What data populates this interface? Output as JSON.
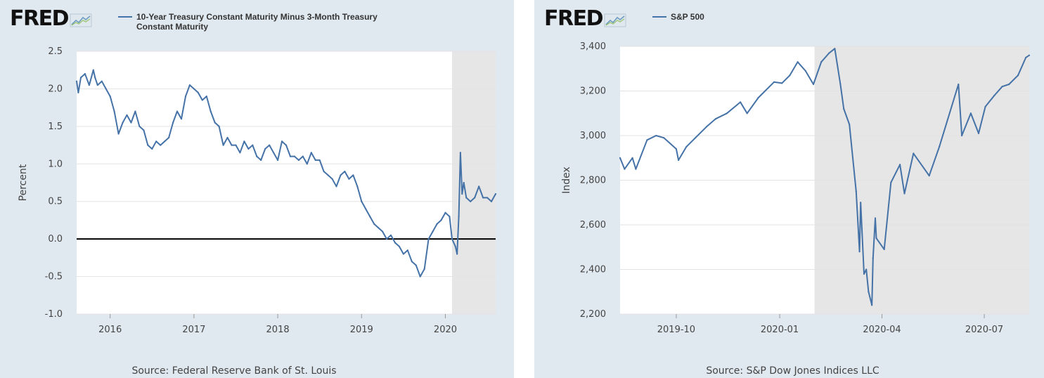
{
  "brand": "FRED",
  "colors": {
    "series": "#4572a7",
    "panel_bg": "#e1e9f0",
    "recession": "#e6e6e6",
    "zero_line": "#000000"
  },
  "chart_data": [
    {
      "type": "line",
      "legend": "10-Year Treasury Constant Maturity Minus 3-Month Treasury Constant Maturity",
      "legend_lines": [
        "10-Year Treasury Constant Maturity Minus 3-Month Treasury",
        "Constant Maturity"
      ],
      "ylabel": "Percent",
      "ylim": [
        -1.0,
        2.5
      ],
      "yticks": [
        "2.5",
        "2.0",
        "1.5",
        "1.0",
        "0.5",
        "0.0",
        "-0.5",
        "-1.0"
      ],
      "xlim": [
        2015.6,
        2020.6
      ],
      "xticks": [
        "2016",
        "2017",
        "2018",
        "2019",
        "2020"
      ],
      "recession": [
        2020.08,
        2020.6
      ],
      "reference_line": 0.0,
      "source": "Source: Federal Reserve Bank of St. Louis",
      "series": [
        {
          "name": "10-Year Treasury Constant Maturity Minus 3-Month Treasury Constant Maturity",
          "x": [
            2015.6,
            2015.62,
            2015.65,
            2015.7,
            2015.75,
            2015.8,
            2015.82,
            2015.85,
            2015.9,
            2015.95,
            2016.0,
            2016.05,
            2016.1,
            2016.15,
            2016.2,
            2016.25,
            2016.3,
            2016.35,
            2016.4,
            2016.45,
            2016.5,
            2016.55,
            2016.6,
            2016.65,
            2016.7,
            2016.75,
            2016.8,
            2016.85,
            2016.9,
            2016.95,
            2017.0,
            2017.05,
            2017.1,
            2017.15,
            2017.2,
            2017.25,
            2017.3,
            2017.35,
            2017.4,
            2017.45,
            2017.5,
            2017.55,
            2017.6,
            2017.65,
            2017.7,
            2017.75,
            2017.8,
            2017.85,
            2017.9,
            2017.95,
            2018.0,
            2018.05,
            2018.1,
            2018.15,
            2018.2,
            2018.25,
            2018.3,
            2018.35,
            2018.4,
            2018.45,
            2018.5,
            2018.55,
            2018.6,
            2018.65,
            2018.7,
            2018.75,
            2018.8,
            2018.85,
            2018.9,
            2018.95,
            2019.0,
            2019.05,
            2019.1,
            2019.15,
            2019.2,
            2019.25,
            2019.3,
            2019.35,
            2019.4,
            2019.45,
            2019.5,
            2019.55,
            2019.6,
            2019.65,
            2019.7,
            2019.75,
            2019.8,
            2019.85,
            2019.9,
            2019.95,
            2020.0,
            2020.05,
            2020.08,
            2020.12,
            2020.14,
            2020.16,
            2020.18,
            2020.2,
            2020.22,
            2020.25,
            2020.3,
            2020.35,
            2020.4,
            2020.45,
            2020.5,
            2020.55,
            2020.6
          ],
          "y": [
            2.1,
            1.95,
            2.15,
            2.2,
            2.05,
            2.25,
            2.15,
            2.05,
            2.1,
            2.0,
            1.9,
            1.7,
            1.4,
            1.55,
            1.65,
            1.55,
            1.7,
            1.5,
            1.45,
            1.25,
            1.2,
            1.3,
            1.25,
            1.3,
            1.35,
            1.55,
            1.7,
            1.6,
            1.9,
            2.05,
            2.0,
            1.95,
            1.85,
            1.9,
            1.7,
            1.55,
            1.5,
            1.25,
            1.35,
            1.25,
            1.25,
            1.15,
            1.3,
            1.2,
            1.25,
            1.1,
            1.05,
            1.2,
            1.25,
            1.15,
            1.05,
            1.3,
            1.25,
            1.1,
            1.1,
            1.05,
            1.1,
            1.0,
            1.15,
            1.05,
            1.05,
            0.9,
            0.85,
            0.8,
            0.7,
            0.85,
            0.9,
            0.8,
            0.85,
            0.7,
            0.5,
            0.4,
            0.3,
            0.2,
            0.15,
            0.1,
            0.0,
            0.05,
            -0.05,
            -0.1,
            -0.2,
            -0.15,
            -0.3,
            -0.35,
            -0.5,
            -0.4,
            0.0,
            0.1,
            0.2,
            0.25,
            0.35,
            0.3,
            0.0,
            -0.1,
            -0.2,
            0.3,
            1.15,
            0.6,
            0.75,
            0.55,
            0.5,
            0.55,
            0.7,
            0.55,
            0.55,
            0.5,
            0.6
          ]
        }
      ]
    },
    {
      "type": "line",
      "legend": "S&P 500",
      "ylabel": "Index",
      "ylim": [
        2200,
        3400
      ],
      "yticks": [
        "3,400",
        "3,200",
        "3,000",
        "2,800",
        "2,600",
        "2,400",
        "2,200"
      ],
      "xlim": [
        "2019-08-12",
        "2020-08-10"
      ],
      "xticks": [
        "2019-10",
        "2020-01",
        "2020-04",
        "2020-07"
      ],
      "recession": [
        "2020-02-01",
        "2020-08-10"
      ],
      "source": "Source: S&P Dow Jones Indices LLC",
      "series": [
        {
          "name": "S&P 500",
          "x": [
            "2019-08-12",
            "2019-08-16",
            "2019-08-23",
            "2019-08-26",
            "2019-09-05",
            "2019-09-13",
            "2019-09-20",
            "2019-10-01",
            "2019-10-03",
            "2019-10-10",
            "2019-10-18",
            "2019-10-28",
            "2019-11-05",
            "2019-11-15",
            "2019-11-27",
            "2019-12-03",
            "2019-12-13",
            "2019-12-27",
            "2020-01-03",
            "2020-01-10",
            "2020-01-17",
            "2020-01-24",
            "2020-01-31",
            "2020-02-07",
            "2020-02-14",
            "2020-02-19",
            "2020-02-24",
            "2020-02-27",
            "2020-03-03",
            "2020-03-09",
            "2020-03-12",
            "2020-03-13",
            "2020-03-16",
            "2020-03-18",
            "2020-03-20",
            "2020-03-23",
            "2020-03-24",
            "2020-03-26",
            "2020-03-27",
            "2020-04-03",
            "2020-04-09",
            "2020-04-17",
            "2020-04-21",
            "2020-04-29",
            "2020-05-13",
            "2020-05-22",
            "2020-06-08",
            "2020-06-11",
            "2020-06-19",
            "2020-06-26",
            "2020-07-02",
            "2020-07-10",
            "2020-07-17",
            "2020-07-23",
            "2020-07-31",
            "2020-08-07",
            "2020-08-10"
          ],
          "y": [
            2900,
            2850,
            2900,
            2850,
            2980,
            3000,
            2990,
            2940,
            2890,
            2950,
            2990,
            3040,
            3075,
            3100,
            3150,
            3100,
            3170,
            3240,
            3235,
            3270,
            3330,
            3290,
            3230,
            3330,
            3370,
            3390,
            3230,
            3120,
            3050,
            2750,
            2480,
            2700,
            2380,
            2400,
            2300,
            2240,
            2450,
            2630,
            2540,
            2490,
            2790,
            2870,
            2740,
            2920,
            2820,
            2950,
            3230,
            3000,
            3100,
            3010,
            3130,
            3180,
            3220,
            3230,
            3270,
            3350,
            3360
          ]
        }
      ]
    }
  ]
}
